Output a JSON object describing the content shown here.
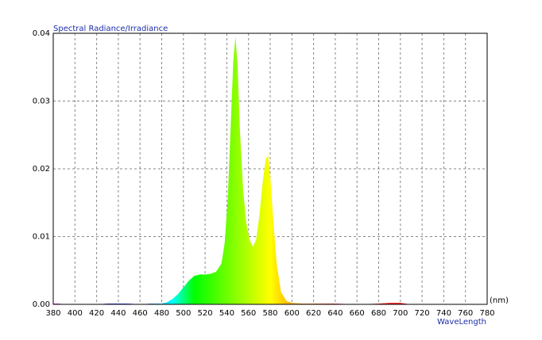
{
  "chart_data": {
    "type": "area",
    "title": "Spectral Radiance/Irradiance",
    "x_unit": "(nm)",
    "x_label": "WaveLength",
    "x": [
      380,
      385,
      390,
      400,
      420,
      430,
      440,
      450,
      460,
      470,
      480,
      485,
      490,
      495,
      500,
      505,
      510,
      515,
      520,
      525,
      530,
      535,
      538,
      541,
      544,
      546,
      548,
      550,
      552,
      555,
      558,
      561,
      564,
      567,
      570,
      573,
      576,
      578,
      580,
      583,
      586,
      590,
      595,
      600,
      610,
      620,
      640,
      660,
      680,
      690,
      700,
      710,
      740,
      780
    ],
    "series": [
      {
        "name": "Spectral Radiance/Irradiance",
        "values": [
          0.0001,
          0.0001,
          0,
          0,
          0,
          0.0001,
          0.0001,
          0.0001,
          0,
          0.0001,
          0.0001,
          0.0003,
          0.0008,
          0.0015,
          0.0025,
          0.0035,
          0.0042,
          0.0044,
          0.0044,
          0.0045,
          0.0048,
          0.006,
          0.009,
          0.016,
          0.028,
          0.036,
          0.0395,
          0.035,
          0.026,
          0.017,
          0.012,
          0.0095,
          0.0085,
          0.0095,
          0.013,
          0.018,
          0.0215,
          0.022,
          0.019,
          0.012,
          0.006,
          0.0018,
          0.0005,
          0.0002,
          0.0001,
          0.0001,
          0.0001,
          0,
          0.0001,
          0.0002,
          0.0002,
          0,
          0,
          0
        ]
      }
    ],
    "xlim": [
      380,
      780
    ],
    "ylim": [
      0,
      0.04
    ],
    "xticks": [
      380,
      400,
      420,
      440,
      460,
      480,
      500,
      520,
      540,
      560,
      580,
      600,
      620,
      640,
      660,
      680,
      700,
      720,
      740,
      760,
      780
    ],
    "yticks": [
      {
        "value": 0,
        "label": "0.00"
      },
      0.01,
      0.02,
      0.03,
      0.04
    ],
    "grid": true
  }
}
